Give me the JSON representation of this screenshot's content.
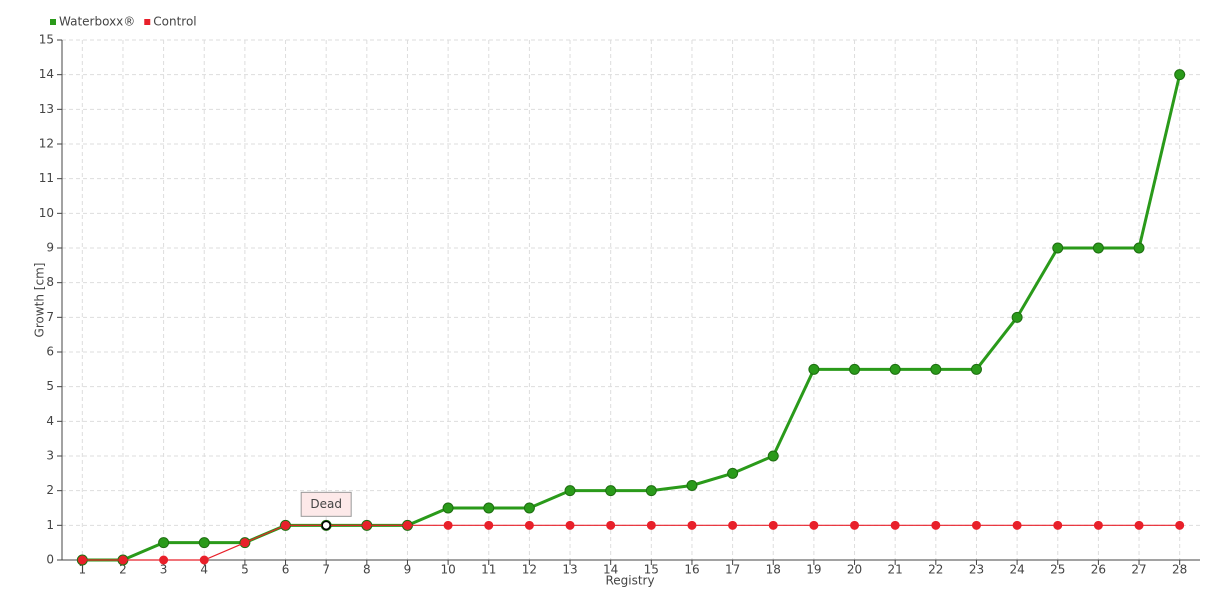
{
  "chart_data": {
    "type": "line",
    "x_label": "Registry",
    "y_label": "Growth [cm]",
    "categories": [
      "1",
      "2",
      "3",
      "4",
      "5",
      "6",
      "7",
      "8",
      "9",
      "10",
      "11",
      "12",
      "13",
      "14",
      "15",
      "16",
      "17",
      "18",
      "19",
      "20",
      "21",
      "22",
      "23",
      "24",
      "25",
      "26",
      "27",
      "28"
    ],
    "series": [
      {
        "name": "Waterboxx®",
        "color": "#2a9a1a",
        "values": [
          0,
          0,
          0.5,
          0.5,
          0.5,
          1,
          1,
          1,
          1,
          1.5,
          1.5,
          1.5,
          2,
          2,
          2,
          2.15,
          2.5,
          3,
          5.5,
          5.5,
          5.5,
          5.5,
          5.5,
          7,
          9,
          9,
          9,
          14
        ]
      },
      {
        "name": "Control",
        "color": "#e8202a",
        "values": [
          0,
          0,
          0,
          0,
          0.5,
          1,
          1,
          1,
          1,
          1,
          1,
          1,
          1,
          1,
          1,
          1,
          1,
          1,
          1,
          1,
          1,
          1,
          1,
          1,
          1,
          1,
          1,
          1
        ]
      }
    ],
    "annotations": [
      {
        "text": "Dead",
        "series": "Control",
        "category": "7"
      }
    ],
    "ylim": [
      0,
      15
    ],
    "yticks": [
      0,
      1,
      2,
      3,
      4,
      5,
      6,
      7,
      8,
      9,
      10,
      11,
      12,
      13,
      14,
      15
    ],
    "grid": true,
    "legend": "top-left"
  }
}
